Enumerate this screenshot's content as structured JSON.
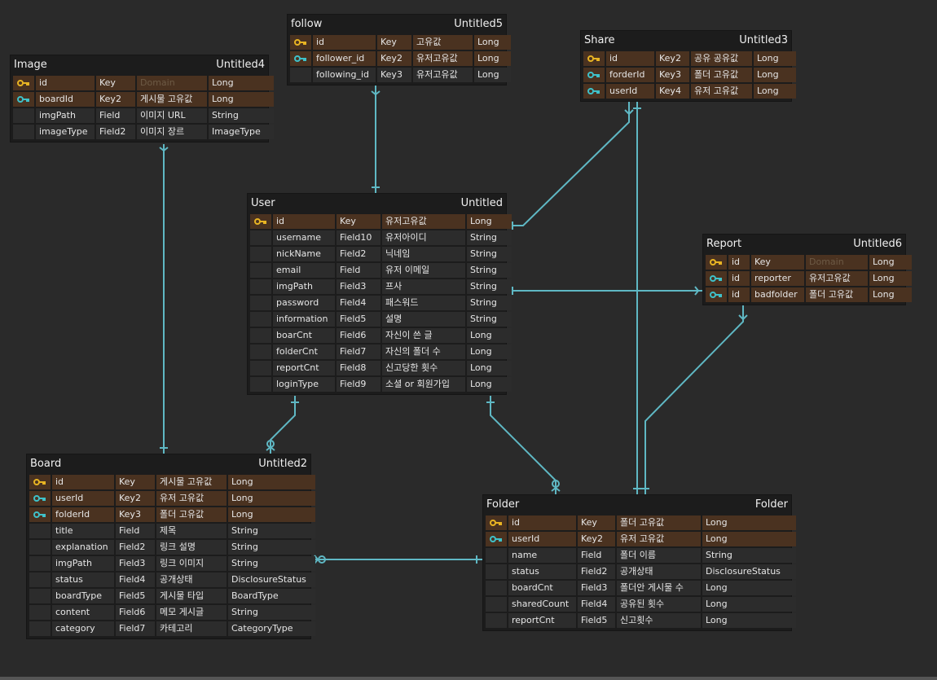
{
  "tables": [
    {
      "name": "Image",
      "label": "Untitled4",
      "rows": [
        {
          "icon": "pk",
          "cells": [
            "id",
            "Key",
            "Domain",
            "Long"
          ],
          "dim": 2
        },
        {
          "icon": "fk",
          "cells": [
            "boardId",
            "Key2",
            "게시물 고유값",
            "Long"
          ]
        },
        {
          "cells": [
            "imgPath",
            "Field",
            "이미지 URL",
            "String"
          ]
        },
        {
          "cells": [
            "imageType",
            "Field2",
            "이미지 장르",
            "ImageType"
          ]
        }
      ]
    },
    {
      "name": "follow",
      "label": "Untitled5",
      "rows": [
        {
          "icon": "pk",
          "cells": [
            "id",
            "Key",
            "고유값",
            "Long"
          ]
        },
        {
          "icon": "fk",
          "cells": [
            "follower_id",
            "Key2",
            "유저고유값",
            "Long"
          ]
        },
        {
          "cells": [
            "following_id",
            "Key3",
            "유저고유값",
            "Long"
          ]
        }
      ]
    },
    {
      "name": "Share",
      "label": "Untitled3",
      "rows": [
        {
          "icon": "pk",
          "cells": [
            "id",
            "Key2",
            "공유 공유값",
            "Long"
          ]
        },
        {
          "icon": "fk",
          "cells": [
            "forderId",
            "Key3",
            "폴더 고유값",
            "Long"
          ]
        },
        {
          "icon": "fk",
          "cells": [
            "userId",
            "Key4",
            "유저 고유값",
            "Long"
          ]
        }
      ]
    },
    {
      "name": "User",
      "label": "Untitled",
      "rows": [
        {
          "icon": "pk",
          "cells": [
            "id",
            "Key",
            "유저고유값",
            "Long"
          ]
        },
        {
          "cells": [
            "username",
            "Field10",
            "유저아이디",
            "String"
          ]
        },
        {
          "cells": [
            "nickName",
            "Field2",
            "닉네임",
            "String"
          ]
        },
        {
          "cells": [
            "email",
            "Field",
            "유저 이메일",
            "String"
          ]
        },
        {
          "cells": [
            "imgPath",
            "Field3",
            "프사",
            "String"
          ]
        },
        {
          "cells": [
            "password",
            "Field4",
            "패스워드",
            "String"
          ]
        },
        {
          "cells": [
            "information",
            "Field5",
            "설명",
            "String"
          ]
        },
        {
          "cells": [
            "boarCnt",
            "Field6",
            "자신이 쓴 글",
            "Long"
          ]
        },
        {
          "cells": [
            "folderCnt",
            "Field7",
            "자신의 폴더 수",
            "Long"
          ]
        },
        {
          "cells": [
            "reportCnt",
            "Field8",
            "신고당한 횟수",
            "Long"
          ]
        },
        {
          "cells": [
            "loginType",
            "Field9",
            "소셜 or 회원가입",
            "Long"
          ]
        }
      ]
    },
    {
      "name": "Report",
      "label": "Untitled6",
      "rows": [
        {
          "icon": "pk",
          "cells": [
            "id",
            "Key",
            "Domain",
            "Long"
          ],
          "dim": 2
        },
        {
          "icon": "fk",
          "cells": [
            "id",
            "reporter",
            "유저고유값",
            "Long"
          ]
        },
        {
          "icon": "fk",
          "cells": [
            "id",
            "badfolder",
            "폴더 고유값",
            "Long"
          ]
        }
      ]
    },
    {
      "name": "Board",
      "label": "Untitled2",
      "rows": [
        {
          "icon": "pk",
          "cells": [
            "id",
            "Key",
            "게시물 고유값",
            "Long"
          ]
        },
        {
          "icon": "fk",
          "cells": [
            "userId",
            "Key2",
            "유저 고유값",
            "Long"
          ]
        },
        {
          "icon": "fk",
          "cells": [
            "folderId",
            "Key3",
            "폴더 고유값",
            "Long"
          ]
        },
        {
          "cells": [
            "title",
            "Field",
            "제목",
            "String"
          ]
        },
        {
          "cells": [
            "explanation",
            "Field2",
            "링크 설명",
            "String"
          ]
        },
        {
          "cells": [
            "imgPath",
            "Field3",
            "링크 이미지",
            "String"
          ]
        },
        {
          "cells": [
            "status",
            "Field4",
            "공개상태",
            "DisclosureStatus"
          ]
        },
        {
          "cells": [
            "boardType",
            "Field5",
            "게시물 타입",
            "BoardType"
          ]
        },
        {
          "cells": [
            "content",
            "Field6",
            "메모 게시글",
            "String"
          ]
        },
        {
          "cells": [
            "category",
            "Field7",
            "카테고리",
            "CategoryType"
          ]
        }
      ]
    },
    {
      "name": "Folder",
      "label": "Folder",
      "rows": [
        {
          "icon": "pk",
          "cells": [
            "id",
            "Key",
            "폴더 고유값",
            "Long"
          ]
        },
        {
          "icon": "fk",
          "cells": [
            "userId",
            "Key2",
            "유저 고유값",
            "Long"
          ]
        },
        {
          "cells": [
            "name",
            "Field",
            "폴더 이름",
            "String"
          ]
        },
        {
          "cells": [
            "status",
            "Field2",
            "공개상태",
            "DisclosureStatus"
          ]
        },
        {
          "cells": [
            "boardCnt",
            "Field3",
            "폴더안 게시물 수",
            "Long"
          ]
        },
        {
          "cells": [
            "sharedCount",
            "Field4",
            "공유된 횟수",
            "Long"
          ]
        },
        {
          "cells": [
            "reportCnt",
            "Field5",
            "신고횟수",
            "Long"
          ]
        }
      ]
    }
  ]
}
